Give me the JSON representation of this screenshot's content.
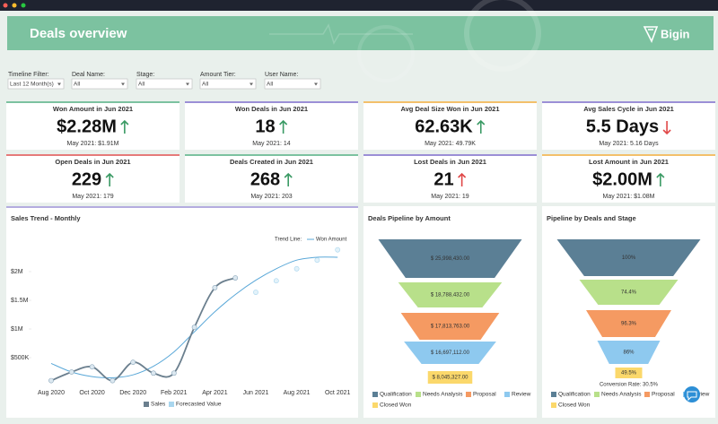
{
  "header": {
    "title": "Deals overview",
    "brand": "Bigin"
  },
  "filters": [
    {
      "label": "Timeline Filter:",
      "value": "Last 12 Month(s)"
    },
    {
      "label": "Deal Name:",
      "value": "All"
    },
    {
      "label": "Stage:",
      "value": "All"
    },
    {
      "label": "Amount Tier:",
      "value": "All"
    },
    {
      "label": "User Name:",
      "value": "All"
    }
  ],
  "kpis": [
    {
      "title": "Won Amount in Jun 2021",
      "value": "$2.28M",
      "trend": "up",
      "arrow_color": "#3a9a64",
      "previous": "May 2021: $1.91M",
      "color": "#7cc2a0"
    },
    {
      "title": "Won Deals in Jun 2021",
      "value": "18",
      "trend": "up",
      "arrow_color": "#3a9a64",
      "previous": "May 2021: 14",
      "color": "#9b8fd6"
    },
    {
      "title": "Avg Deal Size Won in Jun 2021",
      "value": "62.63K",
      "trend": "up",
      "arrow_color": "#3a9a64",
      "previous": "May 2021: 49.79K",
      "color": "#f3c06b"
    },
    {
      "title": "Avg Sales Cycle in Jun 2021",
      "value": "5.5 Days",
      "trend": "down",
      "arrow_color": "#e04848",
      "previous": "May 2021: 5.16 Days",
      "color": "#9b8fd6"
    },
    {
      "title": "Open Deals in Jun 2021",
      "value": "229",
      "trend": "up",
      "arrow_color": "#3a9a64",
      "previous": "May 2021: 179",
      "color": "#e57a7a"
    },
    {
      "title": "Deals Created in Jun 2021",
      "value": "268",
      "trend": "up",
      "arrow_color": "#3a9a64",
      "previous": "May 2021: 203",
      "color": "#7cc2a0"
    },
    {
      "title": "Lost Deals in Jun 2021",
      "value": "21",
      "trend": "up",
      "arrow_color": "#e04848",
      "previous": "May 2021: 19",
      "color": "#9b8fd6"
    },
    {
      "title": "Lost Amount in Jun 2021",
      "value": "$2.00M",
      "trend": "up",
      "arrow_color": "#3a9a64",
      "previous": "May 2021: $1.08M",
      "color": "#f3c06b"
    }
  ],
  "charts": [
    {
      "type": "line",
      "title": "Sales Trend - Monthly",
      "categories": [
        "Aug 2020",
        null,
        "Oct 2020",
        null,
        "Dec 2020",
        null,
        "Feb 2021",
        null,
        "Apr 2021",
        null,
        "Jun 2021",
        null,
        "Aug 2021",
        null,
        "Oct 2021"
      ],
      "ylim": [
        0,
        2500000
      ],
      "yticks": [
        {
          "value": 500000,
          "label": "$500K"
        },
        {
          "value": 1000000,
          "label": "$1M"
        },
        {
          "value": 1500000,
          "label": "$1.5M"
        },
        {
          "value": 2000000,
          "label": "$2M"
        }
      ],
      "series": [
        {
          "name": "Sales",
          "color": "#6b7f8e",
          "values": [
            100000,
            250000,
            340000,
            100000,
            420000,
            230000,
            230000,
            1030000,
            1720000,
            1890000,
            null,
            null,
            null,
            null,
            null
          ]
        },
        {
          "name": "Forecasted Value",
          "color": "#a9d6ee",
          "values": [
            null,
            null,
            null,
            null,
            null,
            null,
            null,
            null,
            null,
            null,
            1640000,
            1840000,
            2050000,
            2200000,
            2380000
          ]
        }
      ],
      "trend": {
        "title": "Trend Line:",
        "name": "Won Amount",
        "color": "#5aa8d8",
        "values": [
          400000,
          250000,
          170000,
          150000,
          200000,
          350000,
          600000,
          950000,
          1300000,
          1600000,
          1850000,
          2050000,
          2200000,
          2250000,
          2250000
        ]
      }
    },
    {
      "type": "funnel",
      "title": "Deals Pipeline by Amount",
      "categories": [
        "Qualification",
        "Needs Analysis",
        "Proposal",
        "Review",
        "Closed Won"
      ],
      "colors": [
        "#5b7f95",
        "#b8e08a",
        "#f59a62",
        "#8ec9ef",
        "#fbd86b"
      ],
      "values": [
        25998430,
        18788432,
        17813763,
        16697112,
        8045327
      ],
      "value_labels": [
        "$ 25,998,430.00",
        "$ 18,788,432.00",
        "$ 17,813,763.00",
        "$ 16,697,112.00",
        "$ 8,045,327.00"
      ]
    },
    {
      "type": "funnel",
      "title": "Pipeline by Deals and Stage",
      "categories": [
        "Qualification",
        "Needs Analysis",
        "Proposal",
        "Review",
        "Closed Won"
      ],
      "colors": [
        "#5b7f95",
        "#b8e08a",
        "#f59a62",
        "#8ec9ef",
        "#fbd86b"
      ],
      "values": [
        100,
        74.4,
        96.3,
        86,
        49.5
      ],
      "value_labels": [
        "100%",
        "74.4%",
        "96.3%",
        "86%",
        "49.5%"
      ],
      "note": "Conversion Rate: 30.5%"
    }
  ]
}
